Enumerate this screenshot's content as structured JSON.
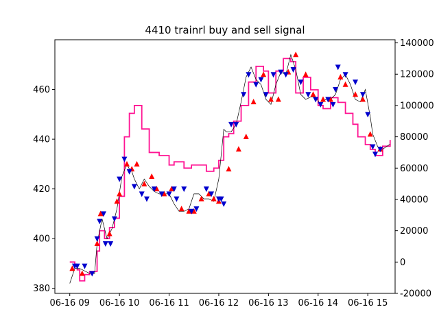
{
  "chart_data": {
    "type": "line",
    "title": "4410 trainrl buy and sell signal",
    "xlabel": "",
    "ylabel": "",
    "x_tick_labels": [
      "06-16 09",
      "06-16 10",
      "06-16 11",
      "06-16 12",
      "06-16 13",
      "06-16 14",
      "06-16 15"
    ],
    "x_ticks_hours": [
      9,
      10,
      11,
      12,
      13,
      14,
      15
    ],
    "xlim_hours": [
      8.7,
      15.55
    ],
    "ylim_left": [
      378,
      480
    ],
    "ylim_right": [
      -20000,
      142000
    ],
    "y_ticks_left": [
      380,
      400,
      420,
      440,
      460
    ],
    "y_ticks_right": [
      -20000,
      0,
      20000,
      40000,
      60000,
      80000,
      100000,
      120000,
      140000
    ],
    "grid": false,
    "colors": {
      "price": "#000000",
      "profit": "#ff1493",
      "buy": "#ff0000",
      "sell": "#0000cd"
    },
    "series": [
      {
        "axis": "left",
        "type": "line",
        "color": "#000000",
        "x": [
          9.0,
          9.1,
          9.2,
          9.3,
          9.4,
          9.5,
          9.55,
          9.65,
          9.75,
          9.85,
          9.95,
          10.05,
          10.15,
          10.2,
          10.25,
          10.3,
          10.4,
          10.5,
          10.6,
          10.7,
          10.8,
          10.9,
          11.0,
          11.1,
          11.2,
          11.3,
          11.4,
          11.5,
          11.6,
          11.7,
          11.8,
          11.9,
          12.0,
          12.1,
          12.15,
          12.25,
          12.35,
          12.45,
          12.55,
          12.65,
          12.75,
          12.85,
          12.95,
          13.05,
          13.15,
          13.25,
          13.35,
          13.45,
          13.55,
          13.65,
          13.75,
          13.85,
          13.95,
          14.05,
          14.15,
          14.25,
          14.35,
          14.45,
          14.55,
          14.65,
          14.75,
          14.85,
          14.95,
          15.05,
          15.1,
          15.2,
          15.3,
          15.45
        ],
        "y": [
          382,
          388,
          388,
          387,
          386,
          386,
          398,
          408,
          400,
          404,
          412,
          425,
          430,
          428,
          427,
          424,
          420,
          424,
          421,
          419,
          418,
          418,
          418,
          414,
          411,
          411,
          412,
          418,
          418,
          416,
          416,
          415,
          424,
          444,
          443,
          443,
          446,
          455,
          465,
          469,
          464,
          462,
          456,
          454,
          462,
          467,
          466,
          474,
          468,
          458,
          456,
          457,
          457,
          454,
          456,
          456,
          458,
          464,
          466,
          462,
          456,
          455,
          460,
          449,
          442,
          437,
          436,
          438
        ]
      },
      {
        "axis": "right",
        "type": "step",
        "color": "#ff1493",
        "x": [
          9.0,
          9.1,
          9.15,
          9.2,
          9.3,
          9.4,
          9.55,
          9.6,
          9.7,
          9.8,
          9.9,
          10.0,
          10.1,
          10.2,
          10.3,
          10.45,
          10.6,
          10.7,
          10.8,
          11.0,
          11.1,
          11.3,
          11.45,
          11.6,
          11.75,
          11.9,
          12.0,
          12.1,
          12.2,
          12.3,
          12.45,
          12.6,
          12.75,
          12.9,
          13.0,
          13.15,
          13.3,
          13.45,
          13.55,
          13.7,
          13.85,
          14.0,
          14.1,
          14.25,
          14.4,
          14.55,
          14.7,
          14.8,
          14.95,
          15.05,
          15.15,
          15.3,
          15.45
        ],
        "y": [
          0,
          -2000,
          -5000,
          -12000,
          -8000,
          -6000,
          7000,
          20000,
          15000,
          22000,
          28000,
          42000,
          80000,
          95000,
          100000,
          85000,
          70000,
          70000,
          68000,
          62000,
          64000,
          60000,
          62000,
          62000,
          58000,
          60000,
          65000,
          80000,
          82000,
          90000,
          100000,
          115000,
          125000,
          122000,
          108000,
          122000,
          130000,
          128000,
          108000,
          118000,
          110000,
          100000,
          98000,
          105000,
          102000,
          95000,
          88000,
          80000,
          75000,
          72000,
          68000,
          74000,
          78000
        ]
      }
    ],
    "buy_signals": {
      "x": [
        9.05,
        9.25,
        9.55,
        9.62,
        9.8,
        9.95,
        10.0,
        10.15,
        10.25,
        10.35,
        10.5,
        10.65,
        10.75,
        10.9,
        11.05,
        11.25,
        11.4,
        11.5,
        11.65,
        11.8,
        11.9,
        12.0,
        12.2,
        12.4,
        12.55,
        12.7,
        12.9,
        13.05,
        13.2,
        13.4,
        13.55,
        13.75,
        13.9,
        14.1,
        14.25,
        14.45,
        14.55,
        14.75,
        14.9,
        15.05,
        15.25
      ],
      "y": [
        388,
        386,
        398,
        410,
        402,
        415,
        418,
        430,
        428,
        430,
        422,
        425,
        420,
        418,
        420,
        412,
        411,
        411,
        416,
        418,
        416,
        415,
        428,
        436,
        441,
        455,
        466,
        456,
        456,
        467,
        474,
        466,
        458,
        456,
        456,
        465,
        462,
        458,
        456,
        442,
        436
      ]
    },
    "sell_signals": {
      "x": [
        9.1,
        9.15,
        9.3,
        9.45,
        9.55,
        9.6,
        9.68,
        9.72,
        9.82,
        9.9,
        10.0,
        10.1,
        10.2,
        10.3,
        10.45,
        10.55,
        10.7,
        10.85,
        11.0,
        11.1,
        11.15,
        11.3,
        11.45,
        11.55,
        11.75,
        11.85,
        12.0,
        12.05,
        12.1,
        12.25,
        12.35,
        12.5,
        12.6,
        12.75,
        12.85,
        12.95,
        13.1,
        13.25,
        13.35,
        13.5,
        13.65,
        13.8,
        13.95,
        14.05,
        14.2,
        14.3,
        14.35,
        14.4,
        14.55,
        14.75,
        14.9,
        15.0,
        15.1,
        15.15,
        15.25
      ],
      "y": [
        389,
        389,
        389,
        386,
        400,
        407,
        410,
        398,
        398,
        408,
        424,
        432,
        427,
        421,
        418,
        416,
        420,
        418,
        418,
        420,
        416,
        420,
        411,
        412,
        420,
        418,
        416,
        416,
        414,
        446,
        446,
        458,
        466,
        462,
        464,
        458,
        466,
        467,
        466,
        468,
        463,
        458,
        456,
        454,
        456,
        454,
        460,
        469,
        466,
        463,
        458,
        450,
        437,
        434,
        436
      ]
    }
  }
}
